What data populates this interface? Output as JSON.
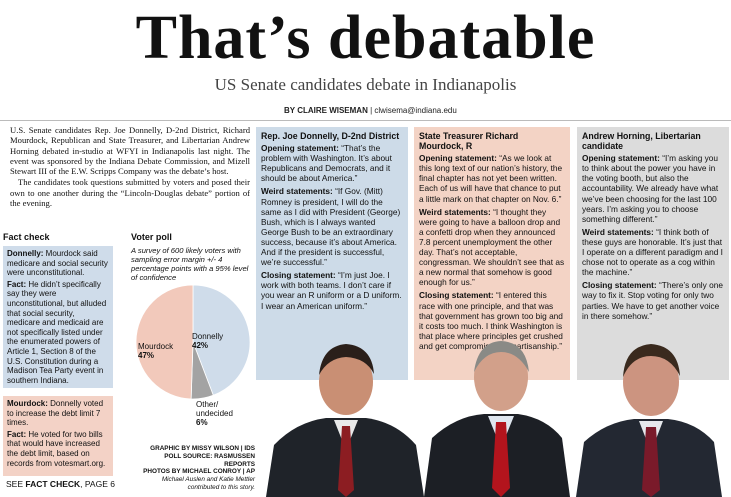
{
  "headline": "That’s debatable",
  "subhead": "US Senate candidates debate in Indianapolis",
  "byline": {
    "author": "BY CLAIRE WISEMAN",
    "separator": "|",
    "email": "clwisema@indiana.edu"
  },
  "intro": [
    "U.S. Senate candidates Rep. Joe Donnelly, D-2nd District, Richard Mourdock, Republican and State Treasurer, and Libertarian Andrew Horning debated in-studio at WFYI in Indianapolis last night. The event was sponsored by the Indiana Debate Commission, and Mizell Stewart III of the E.W. Scripps Company was the debate’s host.",
    "The candidates took questions submitted by voters and posed their own to one another during the “Lincoln-Douglas debate” portion of the evening."
  ],
  "fact_check": {
    "title": "Fact check",
    "blue": [
      {
        "label": "Donnelly:",
        "text": " Mourdock said medicare and social security were unconstitutional."
      },
      {
        "label": "Fact:",
        "text": " He didn’t specifically say they were unconstitutional, but alluded that social security, medicare and medicaid are not specifically listed under the enumerated powers of Article 1, Section 8 of the U.S. Constitution during a Madison Tea Party event in southern Indiana."
      }
    ],
    "pink": [
      {
        "label": "Mourdock:",
        "text": " Donnelly voted to increase the debt limit 7 times."
      },
      {
        "label": "Fact:",
        "text": " He voted for two bills that would have increased the debt limit, based on records from votesmart.org."
      }
    ],
    "see": {
      "prefix": "SEE ",
      "bold": "FACT CHECK",
      "suffix": ", PAGE 6"
    }
  },
  "voter_poll": {
    "title": "Voter poll",
    "description": "A survey of 600 likely voters with sampling error margin +/- 4 percentage points with a 95% level of confidence",
    "slices": [
      {
        "name": "Donnelly",
        "value": "42%",
        "pct": 42,
        "color": "#cfdcea"
      },
      {
        "name": "Other/ undecided",
        "value": "6%",
        "pct": 6,
        "color": "#a3a3a3"
      },
      {
        "name": "Mourdock",
        "value": "47%",
        "pct": 47,
        "color": "#f2c9bb"
      }
    ],
    "credits": [
      "GRAPHIC BY MISSY WILSON | IDS",
      "POLL SOURCE: RASMUSSEN REPORTS",
      "PHOTOS BY MICHAEL CONROY | AP",
      "Michael Auslen and Katie Mettler",
      "contributed to this story."
    ]
  },
  "candidates": [
    {
      "name": "Rep. Joe Donnelly, D-2nd District",
      "items": [
        {
          "label": "Opening statement:",
          "text": " “That’s the problem with Washington. It’s about Republicans and Democrats, and it should be about America.”"
        },
        {
          "label": "Weird statements:",
          "text": " “If Gov. (Mitt) Romney is president, I will do the same as I did with President (George) Bush, which is I always wanted George Bush to be an extraordinary success, because it’s about America. And if the president is successful, we’re successful.”"
        },
        {
          "label": "Closing statement:",
          "text": " “I’m just Joe. I work with both teams. I don’t care if you wear an R uniform or a D uniform. I wear an American uniform.”"
        }
      ]
    },
    {
      "name": "State Treasurer Richard Mourdock, R",
      "items": [
        {
          "label": "Opening statement:",
          "text": " “As we look at this long text of our nation’s history, the final chapter has not yet been written. Each of us will have that chance to put a little mark on that chapter on Nov. 6.”"
        },
        {
          "label": "Weird statements:",
          "text": " “I thought they were going to have a balloon drop and a confetti drop when they announced 7.8 percent unemployment the other day. That’s not acceptable, congressman. We shouldn’t see that as a new normal that somehow is good enough for us.”"
        },
        {
          "label": "Closing statement:",
          "text": " “I entered this race with one principle, and that was that government has grown too big and it costs too much. I think Washington is that place where principles get crushed and get compromised by partisanship.”"
        }
      ]
    },
    {
      "name": "Andrew Horning, Libertarian candidate",
      "items": [
        {
          "label": "Opening statement:",
          "text": " “I’m asking you to think about the power you have in the voting booth, but also the accountability. We already have what we’ve been choosing for the last 100 years. I’m asking you to choose something different.”"
        },
        {
          "label": "Weird statements:",
          "text": " “I think both of these guys are honorable. It’s just that I operate on a different paradigm and I chose not to operate as a cog within the machine.”"
        },
        {
          "label": "Closing statement:",
          "text": " “There’s only one way to fix it. Stop voting for only two parties. We have to get another voice in there somehow.”"
        }
      ]
    }
  ],
  "colors": {
    "donnelly_blue": "#cddbe8",
    "mourdock_pink": "#f3d3c5",
    "horning_gray": "#dcdcdc"
  }
}
